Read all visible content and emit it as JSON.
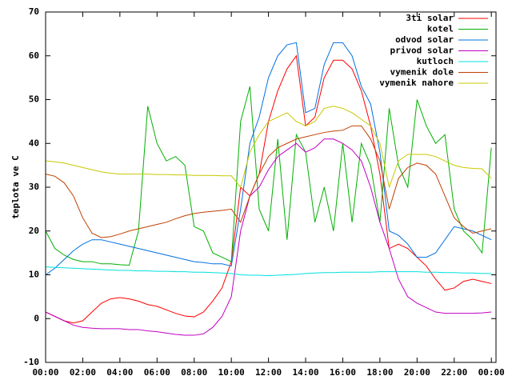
{
  "chart_data": {
    "type": "line",
    "ylabel": "teplota ve C",
    "x": [
      0,
      0.5,
      1,
      1.5,
      2,
      2.5,
      3,
      3.5,
      4,
      4.5,
      5,
      5.5,
      6,
      6.5,
      7,
      7.5,
      8,
      8.5,
      9,
      9.5,
      10,
      10.5,
      11,
      11.5,
      12,
      12.5,
      13,
      13.5,
      14,
      14.5,
      15,
      15.5,
      16,
      16.5,
      17,
      17.5,
      18,
      18.5,
      19,
      19.5,
      20,
      20.5,
      21,
      21.5,
      22,
      22.5,
      23,
      23.5,
      24
    ],
    "xlim": [
      0,
      24.25
    ],
    "xticks": [
      {
        "value": 0,
        "label": "00:00"
      },
      {
        "value": 2,
        "label": "02:00"
      },
      {
        "value": 4,
        "label": "04:00"
      },
      {
        "value": 6,
        "label": "06:00"
      },
      {
        "value": 8,
        "label": "08:00"
      },
      {
        "value": 10,
        "label": "10:00"
      },
      {
        "value": 12,
        "label": "12:00"
      },
      {
        "value": 14,
        "label": "14:00"
      },
      {
        "value": 16,
        "label": "16:00"
      },
      {
        "value": 18,
        "label": "18:00"
      },
      {
        "value": 20,
        "label": "20:00"
      },
      {
        "value": 22,
        "label": "22:00"
      },
      {
        "value": 24,
        "label": "00:00"
      }
    ],
    "ylim": [
      -10,
      70
    ],
    "yticks": [
      -10,
      0,
      10,
      20,
      30,
      40,
      50,
      60,
      70
    ],
    "legend": "top-right",
    "series": [
      {
        "name": "3ti solar",
        "color": "#ff0000",
        "values": [
          1.5,
          0.5,
          -0.5,
          -1,
          -0.5,
          1.5,
          3.5,
          4.5,
          4.8,
          4.5,
          4,
          3.2,
          2.8,
          2,
          1.2,
          0.6,
          0.4,
          1.5,
          4,
          7,
          13,
          30,
          28,
          33,
          45,
          52,
          57,
          60,
          44,
          46,
          55,
          59,
          59,
          57,
          52,
          44,
          33,
          16,
          17,
          16,
          14,
          12,
          9,
          6.5,
          7,
          8.5,
          9,
          8.5,
          8
        ]
      },
      {
        "name": "kotel",
        "color": "#00b000",
        "values": [
          20,
          16,
          14.5,
          13.5,
          13,
          13,
          12.5,
          12.5,
          12.3,
          12.2,
          20,
          48.5,
          40,
          36,
          37,
          35,
          21,
          20,
          15,
          14,
          13,
          45,
          53,
          25,
          20,
          41,
          18,
          42,
          38,
          22,
          30,
          20,
          40,
          22,
          40,
          35,
          22,
          48,
          35,
          30,
          50,
          44,
          40,
          42,
          25,
          20,
          18,
          15,
          39
        ]
      },
      {
        "name": "odvod solar",
        "color": "#0070e0",
        "values": [
          10,
          11.5,
          13.5,
          15.5,
          17,
          18,
          18,
          17.5,
          17,
          16.5,
          16,
          15.5,
          15,
          14.5,
          14,
          13.5,
          13,
          12.8,
          12.5,
          12.5,
          12,
          25,
          40,
          46,
          55,
          60,
          62.5,
          63,
          47,
          48,
          58,
          63,
          63,
          60,
          53,
          49,
          38,
          20,
          19,
          17,
          14,
          14,
          15,
          18,
          21,
          20.5,
          20,
          19,
          18
        ]
      },
      {
        "name": "privod solar",
        "color": "#c000c0",
        "values": [
          1.5,
          0.5,
          -0.5,
          -1.5,
          -2,
          -2.2,
          -2.3,
          -2.3,
          -2.3,
          -2.5,
          -2.5,
          -2.8,
          -3,
          -3.3,
          -3.6,
          -3.8,
          -3.8,
          -3.5,
          -2,
          0.5,
          5,
          20,
          28,
          30,
          34,
          37,
          38.5,
          40,
          38,
          39,
          41,
          41,
          40,
          38.5,
          36,
          30,
          22,
          16,
          9,
          5,
          3.5,
          2.5,
          1.5,
          1.2,
          1.2,
          1.2,
          1.2,
          1.3,
          1.5
        ]
      },
      {
        "name": "kutloch",
        "color": "#00e0e0",
        "values": [
          11.8,
          11.7,
          11.6,
          11.5,
          11.4,
          11.3,
          11.2,
          11.1,
          11,
          11,
          10.9,
          10.9,
          10.8,
          10.8,
          10.7,
          10.7,
          10.6,
          10.6,
          10.5,
          10.4,
          10.3,
          10,
          9.9,
          9.9,
          9.8,
          9.9,
          10,
          10.1,
          10.3,
          10.4,
          10.5,
          10.5,
          10.6,
          10.6,
          10.6,
          10.6,
          10.7,
          10.7,
          10.7,
          10.7,
          10.7,
          10.6,
          10.6,
          10.5,
          10.5,
          10.4,
          10.4,
          10.3,
          10.3
        ]
      },
      {
        "name": "vymenik dole",
        "color": "#c04000",
        "values": [
          33,
          32.5,
          31,
          28,
          23,
          19.5,
          18.5,
          18.7,
          19.3,
          20,
          20.5,
          21,
          21.5,
          22,
          22.8,
          23.5,
          24,
          24.3,
          24.5,
          24.7,
          25,
          22,
          28,
          33,
          37,
          39,
          40,
          41,
          41.5,
          42,
          42.5,
          42.8,
          43,
          44,
          44,
          41,
          36,
          25,
          32,
          34.5,
          35.5,
          35,
          33,
          28,
          23,
          21,
          19.5,
          20,
          20.5
        ]
      },
      {
        "name": "vymenik nahore",
        "color": "#c8c800",
        "values": [
          36,
          35.8,
          35.5,
          35,
          34.5,
          34,
          33.5,
          33.2,
          33,
          33,
          33,
          33,
          32.9,
          32.9,
          32.8,
          32.8,
          32.7,
          32.7,
          32.7,
          32.6,
          32.6,
          30,
          38,
          42,
          45,
          46,
          47,
          45,
          44,
          45,
          48,
          48.5,
          48,
          47,
          45.5,
          44,
          40,
          30,
          36,
          37.5,
          37.5,
          37.5,
          37,
          36,
          35,
          34.5,
          34.3,
          34.2,
          32
        ]
      }
    ]
  }
}
